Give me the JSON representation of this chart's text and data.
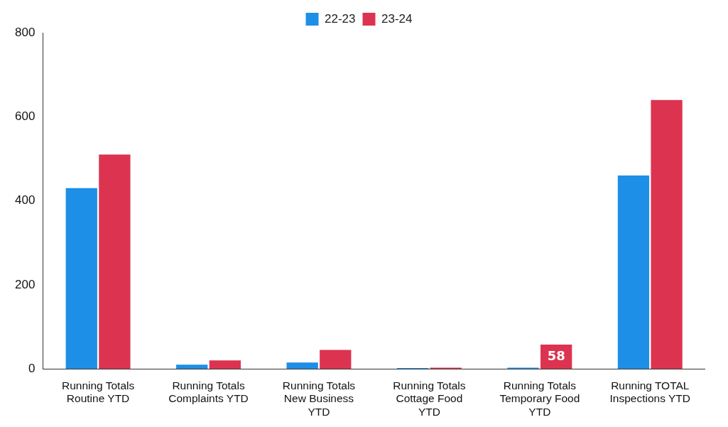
{
  "chart_data": {
    "type": "bar",
    "categories": [
      "Running Totals Routine YTD",
      "Running Totals Complaints YTD",
      "Running Totals New Business YTD",
      "Running Totals Cottage Food YTD",
      "Running Totals Temporary Food YTD",
      "Running TOTAL Inspections YTD"
    ],
    "series": [
      {
        "name": "22-23",
        "color": "#1e8fe6",
        "values": [
          430,
          10,
          15,
          2,
          3,
          460
        ]
      },
      {
        "name": "23-24",
        "color": "#dc3450",
        "values": [
          510,
          20,
          45,
          3,
          58,
          640
        ],
        "value_labels": [
          null,
          null,
          null,
          null,
          "58",
          null
        ]
      }
    ],
    "ylim": [
      0,
      800
    ],
    "yticks": [
      0,
      200,
      400,
      600,
      800
    ],
    "grid": false,
    "legend": "top"
  }
}
